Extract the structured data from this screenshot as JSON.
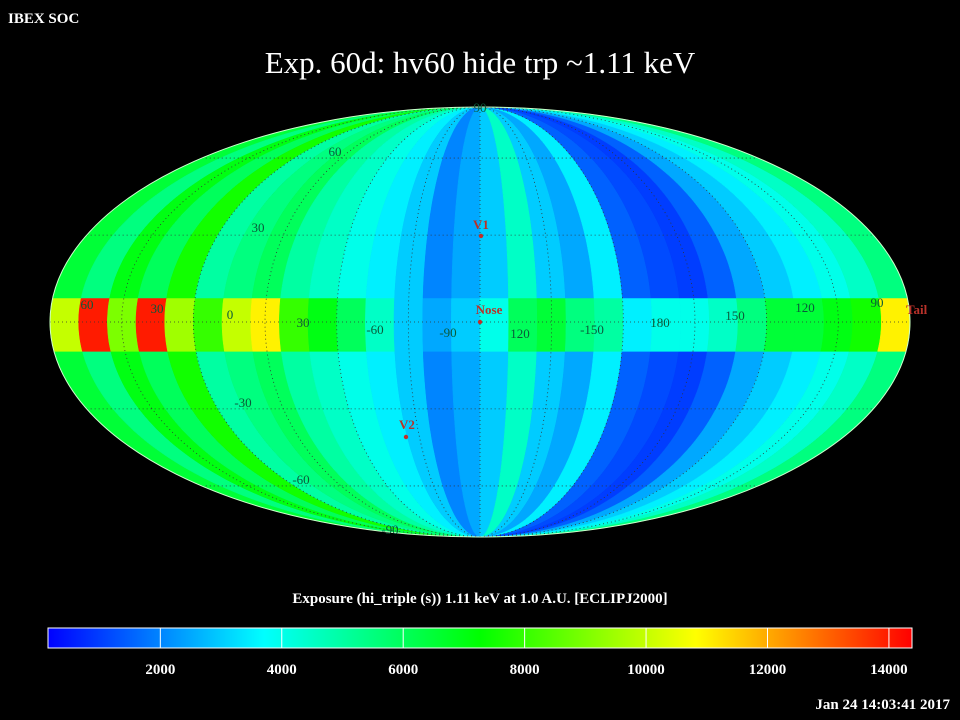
{
  "header": {
    "label": "IBEX SOC",
    "title": "Exp.   60d: hv60 hide trp ~1.11 keV"
  },
  "map": {
    "projection": "mollweide",
    "colormap": [
      "#0000ff",
      "#00ffff",
      "#00ff00",
      "#ffff00",
      "#ff0000"
    ],
    "strips": [
      6500,
      5500,
      7000,
      6000,
      7500,
      5000,
      5500,
      6000,
      5000,
      4500,
      4000,
      3500,
      3000,
      2000,
      2500,
      3000,
      4500,
      3000,
      2500,
      3500,
      1500,
      1200,
      1000,
      1500,
      2500,
      3000,
      3500,
      4000,
      4500,
      5500
    ],
    "band": [
      10000,
      14000,
      9000,
      14000,
      9500,
      8000,
      10000,
      11000,
      8000,
      7000,
      6000,
      4500,
      3000,
      2500,
      3000,
      4000,
      6000,
      6500,
      5500,
      5000,
      3500,
      4000,
      4000,
      4500,
      5500,
      6500,
      6500,
      7000,
      7500,
      11000
    ],
    "lat_labels": [
      "90",
      "60",
      "30",
      "-30",
      "-60",
      "-90"
    ],
    "lon_labels": [
      "60",
      "30",
      "0",
      "30",
      "-60",
      "-90",
      "120",
      "-150",
      "180",
      "150",
      "120",
      "90"
    ],
    "markers": [
      {
        "label": "V1"
      },
      {
        "label": "Nose"
      },
      {
        "label": "V2"
      },
      {
        "label": "Tail"
      }
    ]
  },
  "colorbar": {
    "title": "Exposure (hi_triple (s))  1.11 keV at 1.0 A.U. [ECLIPJ2000]",
    "lim": [
      150,
      14380
    ],
    "ticks": [
      2000,
      4000,
      6000,
      8000,
      10000,
      12000,
      14000
    ]
  },
  "footer": {
    "timestamp": "Jan 24 14:03:41 2017"
  }
}
